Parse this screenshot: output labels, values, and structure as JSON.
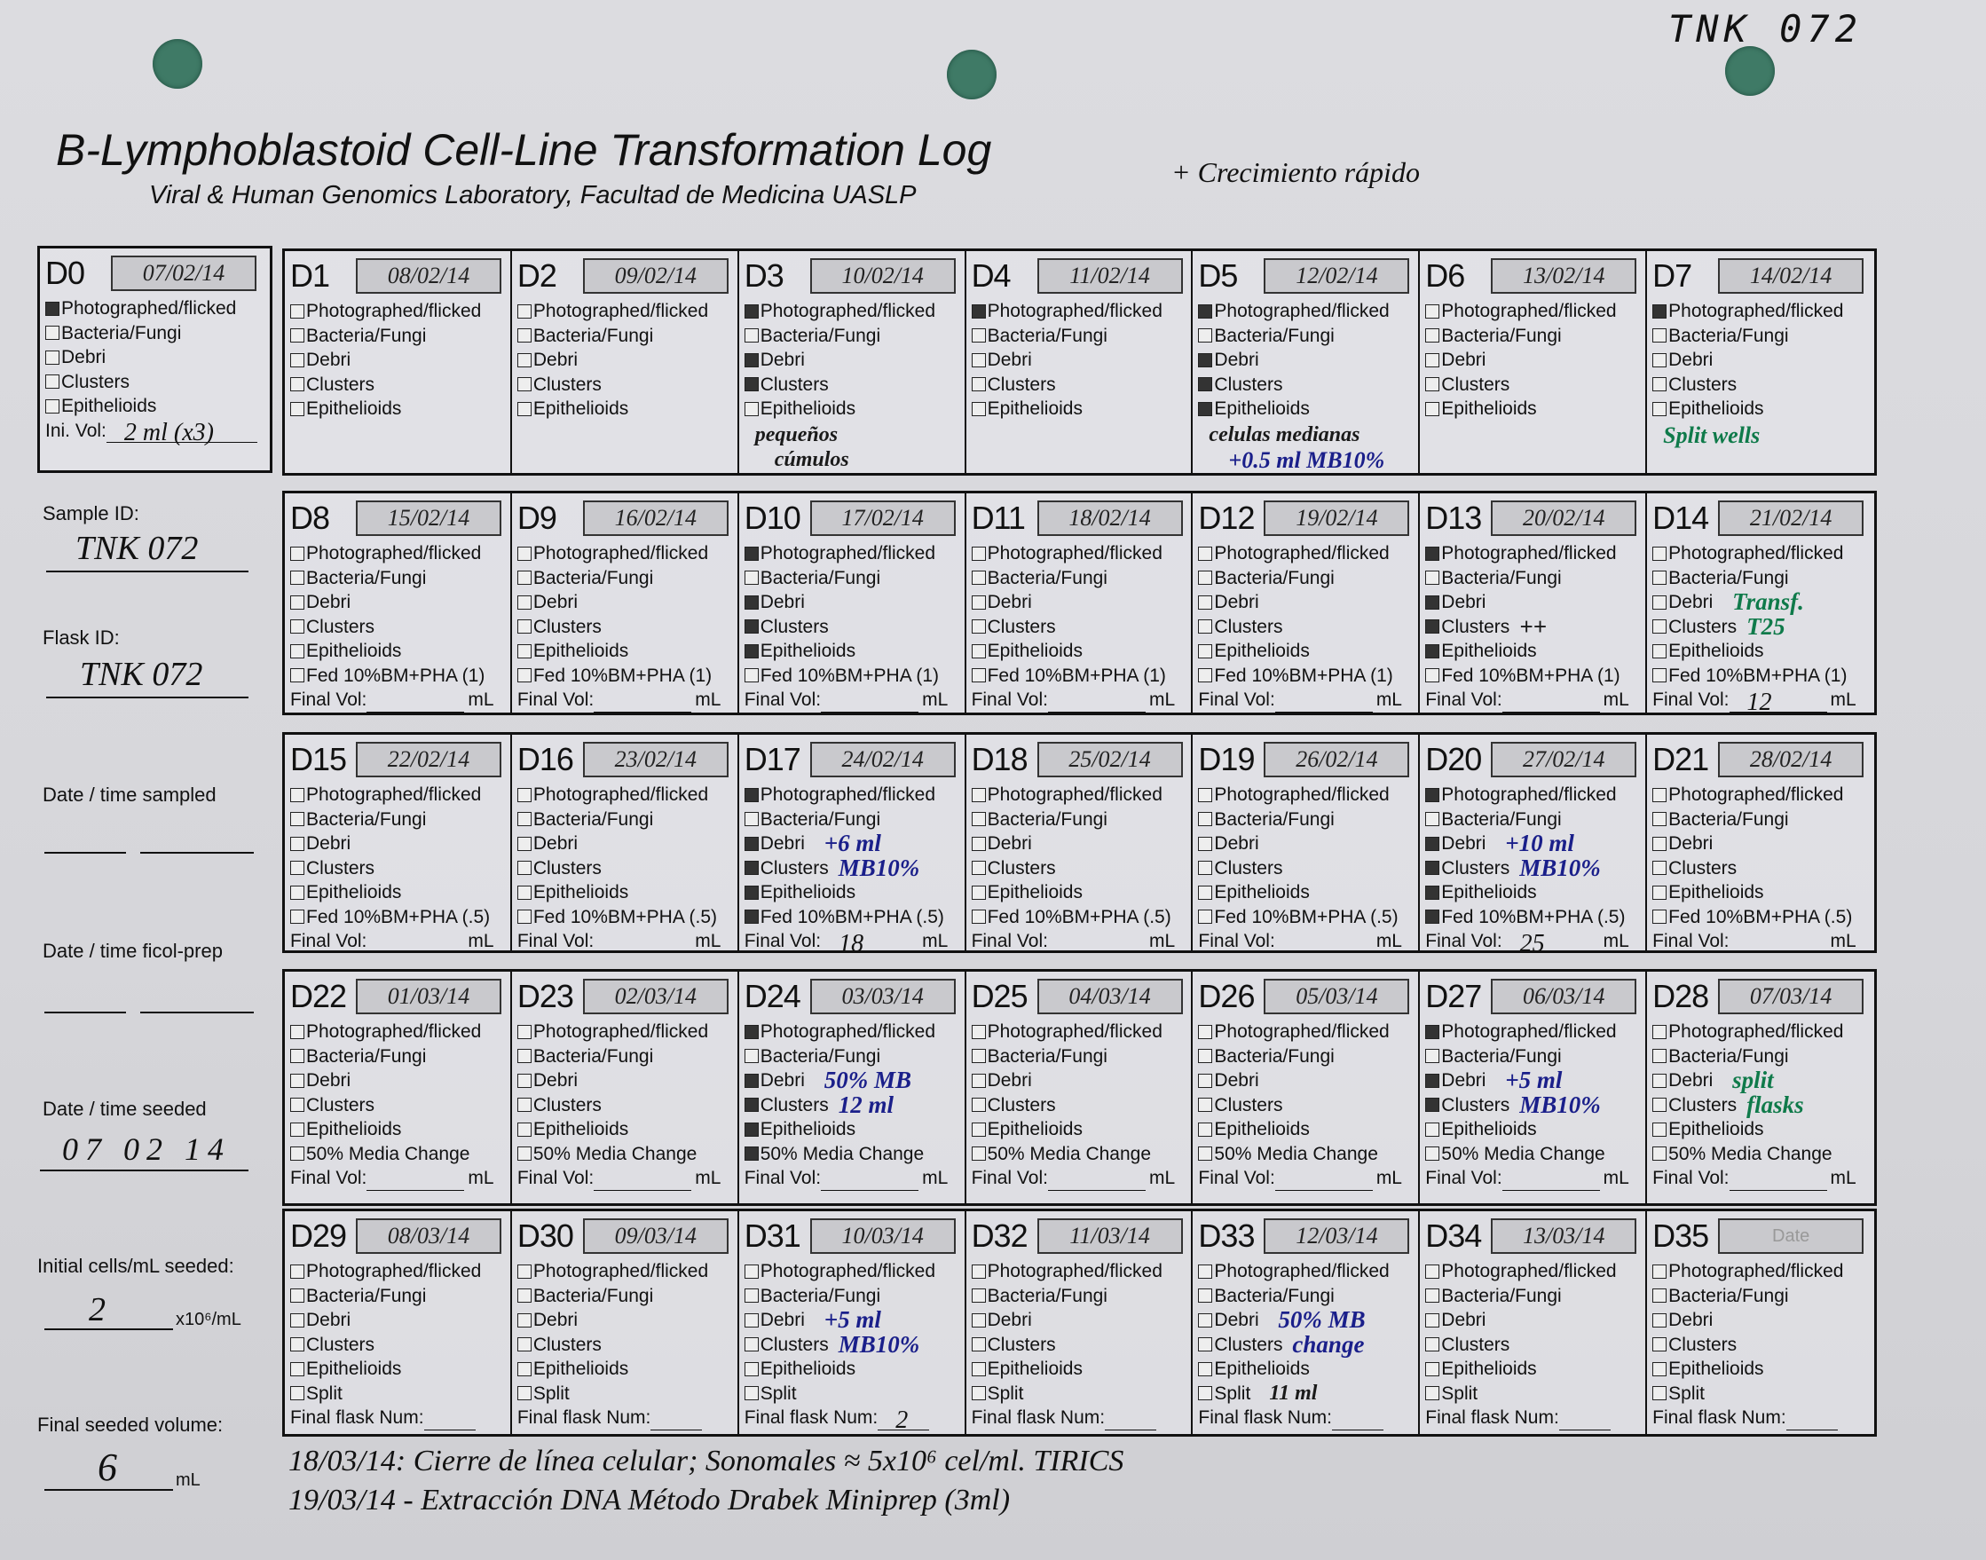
{
  "header": {
    "title": "B-Lymphoblastoid Cell-Line Transformation Log",
    "subtitle": "Viral & Human Genomics Laboratory, Facultad de Medicina UASLP",
    "corner_id": "TNK 072",
    "annotation": "+ Crecimiento rápido"
  },
  "colors": {
    "ink_blue": "#1a1f8a",
    "ink_green": "#0f7a4a",
    "ink_black": "#1a1a1a",
    "hole": "#3f7a66"
  },
  "d0": {
    "day": "D0",
    "date": "07/02/14",
    "items": [
      {
        "label": "Photographed/flicked",
        "checked": true
      },
      {
        "label": "Bacteria/Fungi",
        "checked": false
      },
      {
        "label": "Debri",
        "checked": false
      },
      {
        "label": "Clusters",
        "checked": false
      },
      {
        "label": "Epithelioids",
        "checked": false
      }
    ],
    "vol_label": "Ini. Vol:",
    "vol_value": "2 ml (x3)"
  },
  "sidebar": {
    "sample_id_label": "Sample ID:",
    "sample_id": "TNK 072",
    "flask_id_label": "Flask ID:",
    "flask_id": "TNK 072",
    "sampled_label": "Date / time sampled",
    "ficol_label": "Date / time ficol-prep",
    "seeded_label": "Date / time seeded",
    "seeded_value": "07 02 14",
    "cells_label": "Initial cells/mL seeded:",
    "cells_value": "2",
    "cells_unit": "x10⁶/mL",
    "volume_label": "Final seeded volume:",
    "volume_value": "6",
    "volume_unit": "mL"
  },
  "rows": [
    {
      "extra": null,
      "footer": null,
      "cells": [
        {
          "day": "D1",
          "date": "08/02/14",
          "checked": []
        },
        {
          "day": "D2",
          "date": "09/02/14",
          "checked": []
        },
        {
          "day": "D3",
          "date": "10/02/14",
          "checked": [
            0,
            2,
            3
          ],
          "notes": [
            {
              "text": "pequeños",
              "color": "black"
            },
            {
              "text": "cúmulos",
              "color": "black"
            }
          ]
        },
        {
          "day": "D4",
          "date": "11/02/14",
          "checked": [
            0
          ]
        },
        {
          "day": "D5",
          "date": "12/02/14",
          "checked": [
            0,
            2,
            3,
            4
          ],
          "notes": [
            {
              "text": "celulas medianas",
              "color": "black"
            },
            {
              "text": "+0.5 ml MB10%",
              "color": "blue"
            }
          ]
        },
        {
          "day": "D6",
          "date": "13/02/14",
          "checked": []
        },
        {
          "day": "D7",
          "date": "14/02/14",
          "checked": [
            0
          ],
          "notes": [
            {
              "text": "Split wells",
              "color": "green"
            }
          ]
        }
      ]
    },
    {
      "extra": "Fed 10%BM+PHA (1)",
      "footer": "Final Vol:",
      "unit": "mL",
      "cells": [
        {
          "day": "D8",
          "date": "15/02/14",
          "checked": []
        },
        {
          "day": "D9",
          "date": "16/02/14",
          "checked": []
        },
        {
          "day": "D10",
          "date": "17/02/14",
          "checked": [
            0,
            2,
            3,
            4
          ]
        },
        {
          "day": "D11",
          "date": "18/02/14",
          "checked": []
        },
        {
          "day": "D12",
          "date": "19/02/14",
          "checked": []
        },
        {
          "day": "D13",
          "date": "20/02/14",
          "checked": [
            0,
            2,
            3,
            4
          ],
          "side_notes": [
            {
              "text": "++",
              "color": "black"
            }
          ]
        },
        {
          "day": "D14",
          "date": "21/02/14",
          "checked": [],
          "side_notes": [
            {
              "text": "Transf.",
              "color": "green"
            },
            {
              "text": "T25",
              "color": "green"
            }
          ],
          "final": "12"
        }
      ]
    },
    {
      "extra": "Fed 10%BM+PHA (.5)",
      "footer": "Final Vol:",
      "unit": "mL",
      "cells": [
        {
          "day": "D15",
          "date": "22/02/14",
          "checked": []
        },
        {
          "day": "D16",
          "date": "23/02/14",
          "checked": []
        },
        {
          "day": "D17",
          "date": "24/02/14",
          "checked": [
            0,
            2,
            3,
            4,
            5
          ],
          "side_notes": [
            {
              "text": "+6 ml",
              "color": "blue"
            },
            {
              "text": "MB10%",
              "color": "blue"
            }
          ],
          "final": "18"
        },
        {
          "day": "D18",
          "date": "25/02/14",
          "checked": []
        },
        {
          "day": "D19",
          "date": "26/02/14",
          "checked": []
        },
        {
          "day": "D20",
          "date": "27/02/14",
          "checked": [
            0,
            2,
            3,
            4,
            5
          ],
          "side_notes": [
            {
              "text": "+10 ml",
              "color": "blue"
            },
            {
              "text": "MB10%",
              "color": "blue"
            }
          ],
          "final": "25"
        },
        {
          "day": "D21",
          "date": "28/02/14",
          "checked": []
        }
      ]
    },
    {
      "extra": "50% Media Change",
      "footer": "Final Vol:",
      "unit": "mL",
      "cells": [
        {
          "day": "D22",
          "date": "01/03/14",
          "checked": []
        },
        {
          "day": "D23",
          "date": "02/03/14",
          "checked": []
        },
        {
          "day": "D24",
          "date": "03/03/14",
          "checked": [
            0,
            2,
            3,
            4,
            5
          ],
          "side_notes": [
            {
              "text": "50% MB",
              "color": "blue"
            },
            {
              "text": "12 ml",
              "color": "blue"
            }
          ]
        },
        {
          "day": "D25",
          "date": "04/03/14",
          "checked": []
        },
        {
          "day": "D26",
          "date": "05/03/14",
          "checked": []
        },
        {
          "day": "D27",
          "date": "06/03/14",
          "checked": [
            0,
            2,
            3
          ],
          "side_notes": [
            {
              "text": "+5 ml",
              "color": "blue"
            },
            {
              "text": "MB10%",
              "color": "blue"
            }
          ]
        },
        {
          "day": "D28",
          "date": "07/03/14",
          "checked": [],
          "side_notes": [
            {
              "text": "split",
              "color": "green"
            },
            {
              "text": "flasks",
              "color": "green"
            }
          ]
        }
      ]
    },
    {
      "extra": "Split",
      "footer": "Final flask Num:",
      "unit": "",
      "cells": [
        {
          "day": "D29",
          "date": "08/03/14",
          "checked": []
        },
        {
          "day": "D30",
          "date": "09/03/14",
          "checked": []
        },
        {
          "day": "D31",
          "date": "10/03/14",
          "checked": [],
          "side_notes": [
            {
              "text": "+5 ml",
              "color": "blue"
            },
            {
              "text": "MB10%",
              "color": "blue"
            }
          ],
          "final": "2"
        },
        {
          "day": "D32",
          "date": "11/03/14",
          "checked": []
        },
        {
          "day": "D33",
          "date": "12/03/14",
          "checked": [],
          "side_notes": [
            {
              "text": "50% MB",
              "color": "blue"
            },
            {
              "text": "change",
              "color": "blue"
            },
            {
              "text": "11 ml",
              "color": "black"
            }
          ]
        },
        {
          "day": "D34",
          "date": "13/03/14",
          "checked": []
        },
        {
          "day": "D35",
          "date": "",
          "date_placeholder": "Date",
          "checked": []
        }
      ]
    }
  ],
  "base_items": [
    "Photographed/flicked",
    "Bacteria/Fungi",
    "Debri",
    "Clusters",
    "Epithelioids"
  ],
  "footer_notes": [
    "18/03/14: Cierre de línea celular; Sonomales ≈ 5x10⁶ cel/ml. TIRICS",
    "19/03/14 - Extracción DNA Método Drabek Miniprep (3ml)"
  ]
}
